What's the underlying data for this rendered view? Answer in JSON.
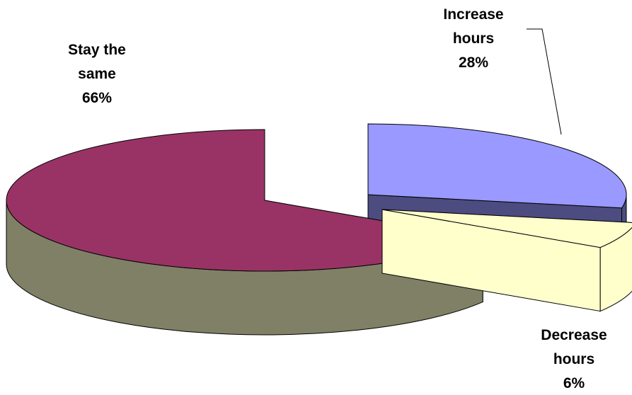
{
  "chart_data": {
    "type": "pie",
    "style": "3d-exploded",
    "title": "",
    "categories": [
      "Increase hours",
      "Decrease hours",
      "Stay the same"
    ],
    "values": [
      28,
      6,
      66
    ],
    "value_unit": "%",
    "slices": [
      {
        "name": "Increase hours",
        "value": 28,
        "label_lines": [
          "Increase",
          "hours",
          "28%"
        ],
        "top_color": "#9999FF",
        "side_color": "#4C4C80"
      },
      {
        "name": "Decrease hours",
        "value": 6,
        "label_lines": [
          "Decrease",
          "hours",
          "6%"
        ],
        "top_color": "#FFFFCC",
        "side_color": "#FFFFCC"
      },
      {
        "name": "Stay the same",
        "value": 66,
        "label_lines": [
          "Stay the",
          "same",
          "66%"
        ],
        "top_color": "#993366",
        "side_color": "#808066"
      }
    ],
    "legend": "none",
    "data_labels": "outside with leader line"
  }
}
